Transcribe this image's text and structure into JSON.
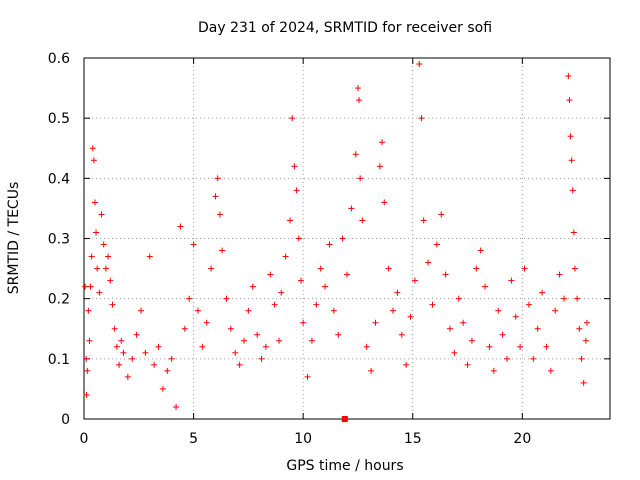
{
  "chart_data": {
    "type": "scatter",
    "title": "Day 231 of 2024, SRMTID for receiver sofi",
    "xlabel": "GPS time / hours",
    "ylabel": "SRMTID / TECUs",
    "xlim": [
      0,
      24
    ],
    "ylim": [
      0,
      0.6
    ],
    "x_ticks": [
      0,
      5,
      10,
      15,
      20
    ],
    "y_ticks": [
      0,
      0.1,
      0.2,
      0.3,
      0.4,
      0.5,
      0.6
    ],
    "x_tick_labels": [
      "0",
      "5",
      "10",
      "15",
      "20"
    ],
    "y_tick_labels": [
      "0",
      "0.1",
      "0.2",
      "0.3",
      "0.4",
      "0.5",
      "0.6"
    ],
    "grid": true,
    "marker": "plus",
    "marker_color": "#ff0000",
    "grid_color": "#a0a0a0",
    "series": [
      {
        "name": "SRMTID",
        "points": [
          [
            0.05,
            0.22
          ],
          [
            0.1,
            0.1
          ],
          [
            0.12,
            0.04
          ],
          [
            0.15,
            0.08
          ],
          [
            0.2,
            0.18
          ],
          [
            0.25,
            0.13
          ],
          [
            0.3,
            0.22
          ],
          [
            0.35,
            0.27
          ],
          [
            0.4,
            0.45
          ],
          [
            0.45,
            0.43
          ],
          [
            0.5,
            0.36
          ],
          [
            0.55,
            0.31
          ],
          [
            0.6,
            0.25
          ],
          [
            0.7,
            0.21
          ],
          [
            0.8,
            0.34
          ],
          [
            0.9,
            0.29
          ],
          [
            1.0,
            0.25
          ],
          [
            1.1,
            0.27
          ],
          [
            1.2,
            0.23
          ],
          [
            1.3,
            0.19
          ],
          [
            1.4,
            0.15
          ],
          [
            1.5,
            0.12
          ],
          [
            1.6,
            0.09
          ],
          [
            1.7,
            0.13
          ],
          [
            1.8,
            0.11
          ],
          [
            2.0,
            0.07
          ],
          [
            2.2,
            0.1
          ],
          [
            2.4,
            0.14
          ],
          [
            2.6,
            0.18
          ],
          [
            2.8,
            0.11
          ],
          [
            3.0,
            0.27
          ],
          [
            3.2,
            0.09
          ],
          [
            3.4,
            0.12
          ],
          [
            3.6,
            0.05
          ],
          [
            3.8,
            0.08
          ],
          [
            4.0,
            0.1
          ],
          [
            4.2,
            0.02
          ],
          [
            4.4,
            0.32
          ],
          [
            4.6,
            0.15
          ],
          [
            4.8,
            0.2
          ],
          [
            5.0,
            0.29
          ],
          [
            5.2,
            0.18
          ],
          [
            5.4,
            0.12
          ],
          [
            5.6,
            0.16
          ],
          [
            5.8,
            0.25
          ],
          [
            6.0,
            0.37
          ],
          [
            6.1,
            0.4
          ],
          [
            6.2,
            0.34
          ],
          [
            6.3,
            0.28
          ],
          [
            6.5,
            0.2
          ],
          [
            6.7,
            0.15
          ],
          [
            6.9,
            0.11
          ],
          [
            7.1,
            0.09
          ],
          [
            7.3,
            0.13
          ],
          [
            7.5,
            0.18
          ],
          [
            7.7,
            0.22
          ],
          [
            7.9,
            0.14
          ],
          [
            8.1,
            0.1
          ],
          [
            8.3,
            0.12
          ],
          [
            8.5,
            0.24
          ],
          [
            8.7,
            0.19
          ],
          [
            8.9,
            0.13
          ],
          [
            9.0,
            0.21
          ],
          [
            9.2,
            0.27
          ],
          [
            9.4,
            0.33
          ],
          [
            9.5,
            0.5
          ],
          [
            9.6,
            0.42
          ],
          [
            9.7,
            0.38
          ],
          [
            9.8,
            0.3
          ],
          [
            9.9,
            0.23
          ],
          [
            10.0,
            0.16
          ],
          [
            10.2,
            0.07
          ],
          [
            10.4,
            0.13
          ],
          [
            10.6,
            0.19
          ],
          [
            10.8,
            0.25
          ],
          [
            11.0,
            0.22
          ],
          [
            11.2,
            0.29
          ],
          [
            11.4,
            0.18
          ],
          [
            11.6,
            0.14
          ],
          [
            11.8,
            0.3
          ],
          [
            12.0,
            0.24
          ],
          [
            12.2,
            0.35
          ],
          [
            12.4,
            0.44
          ],
          [
            12.5,
            0.55
          ],
          [
            12.55,
            0.53
          ],
          [
            12.6,
            0.4
          ],
          [
            12.7,
            0.33
          ],
          [
            12.9,
            0.12
          ],
          [
            13.1,
            0.08
          ],
          [
            13.3,
            0.16
          ],
          [
            13.5,
            0.42
          ],
          [
            13.6,
            0.46
          ],
          [
            13.7,
            0.36
          ],
          [
            13.9,
            0.25
          ],
          [
            14.1,
            0.18
          ],
          [
            14.3,
            0.21
          ],
          [
            14.5,
            0.14
          ],
          [
            14.7,
            0.09
          ],
          [
            14.9,
            0.17
          ],
          [
            15.1,
            0.23
          ],
          [
            15.3,
            0.59
          ],
          [
            15.4,
            0.5
          ],
          [
            15.5,
            0.33
          ],
          [
            15.7,
            0.26
          ],
          [
            15.9,
            0.19
          ],
          [
            16.1,
            0.29
          ],
          [
            16.3,
            0.34
          ],
          [
            16.5,
            0.24
          ],
          [
            16.7,
            0.15
          ],
          [
            16.9,
            0.11
          ],
          [
            17.1,
            0.2
          ],
          [
            17.3,
            0.16
          ],
          [
            17.5,
            0.09
          ],
          [
            17.7,
            0.13
          ],
          [
            17.9,
            0.25
          ],
          [
            18.1,
            0.28
          ],
          [
            18.3,
            0.22
          ],
          [
            18.5,
            0.12
          ],
          [
            18.7,
            0.08
          ],
          [
            18.9,
            0.18
          ],
          [
            19.1,
            0.14
          ],
          [
            19.3,
            0.1
          ],
          [
            19.5,
            0.23
          ],
          [
            19.7,
            0.17
          ],
          [
            19.9,
            0.12
          ],
          [
            20.1,
            0.25
          ],
          [
            20.3,
            0.19
          ],
          [
            20.5,
            0.1
          ],
          [
            20.7,
            0.15
          ],
          [
            20.9,
            0.21
          ],
          [
            21.1,
            0.12
          ],
          [
            21.3,
            0.08
          ],
          [
            21.5,
            0.18
          ],
          [
            21.7,
            0.24
          ],
          [
            21.9,
            0.2
          ],
          [
            22.1,
            0.57
          ],
          [
            22.15,
            0.53
          ],
          [
            22.2,
            0.47
          ],
          [
            22.25,
            0.43
          ],
          [
            22.3,
            0.38
          ],
          [
            22.35,
            0.31
          ],
          [
            22.4,
            0.25
          ],
          [
            22.5,
            0.2
          ],
          [
            22.6,
            0.15
          ],
          [
            22.7,
            0.1
          ],
          [
            22.8,
            0.06
          ],
          [
            22.9,
            0.13
          ],
          [
            22.95,
            0.16
          ]
        ]
      }
    ],
    "highlight_point": [
      11.9,
      0.0
    ]
  }
}
